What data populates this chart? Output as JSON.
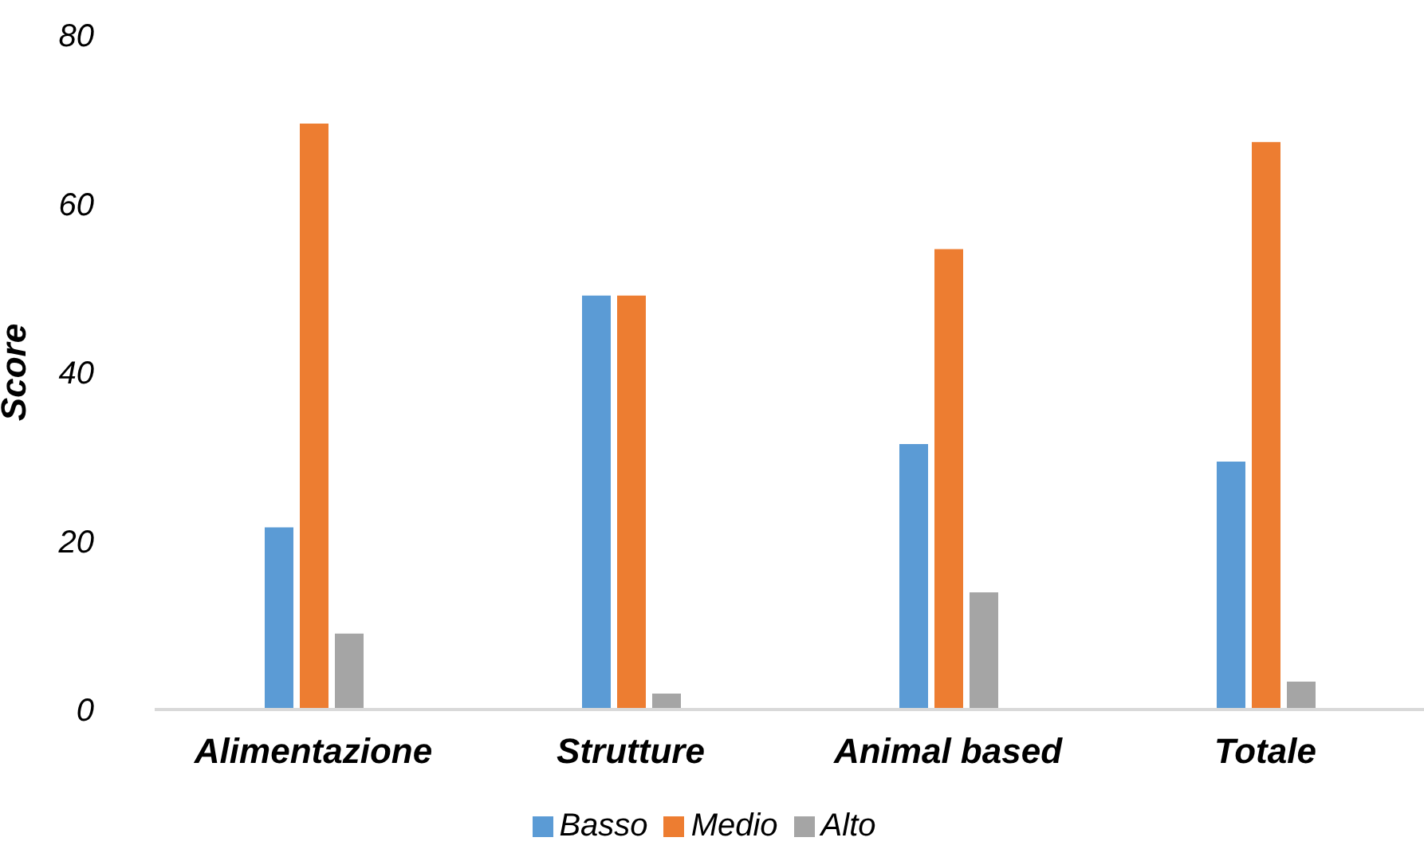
{
  "chart_data": {
    "type": "bar",
    "ylabel": "Score",
    "categories": [
      "Alimentazione",
      "Strutture",
      "Animal based",
      "Totale"
    ],
    "series": [
      {
        "name": "Basso",
        "color": "#5b9bd5",
        "values": [
          21.6,
          49.1,
          31.5,
          29.4
        ]
      },
      {
        "name": "Medio",
        "color": "#ed7d31",
        "values": [
          69.5,
          49.1,
          54.6,
          67.3
        ]
      },
      {
        "name": "Alto",
        "color": "#a5a5a5",
        "values": [
          9.0,
          1.9,
          13.9,
          3.3
        ]
      }
    ],
    "ylim": [
      0,
      80
    ],
    "yticks": [
      0,
      20,
      40,
      60,
      80
    ],
    "grid": false,
    "legend": "bottom"
  }
}
